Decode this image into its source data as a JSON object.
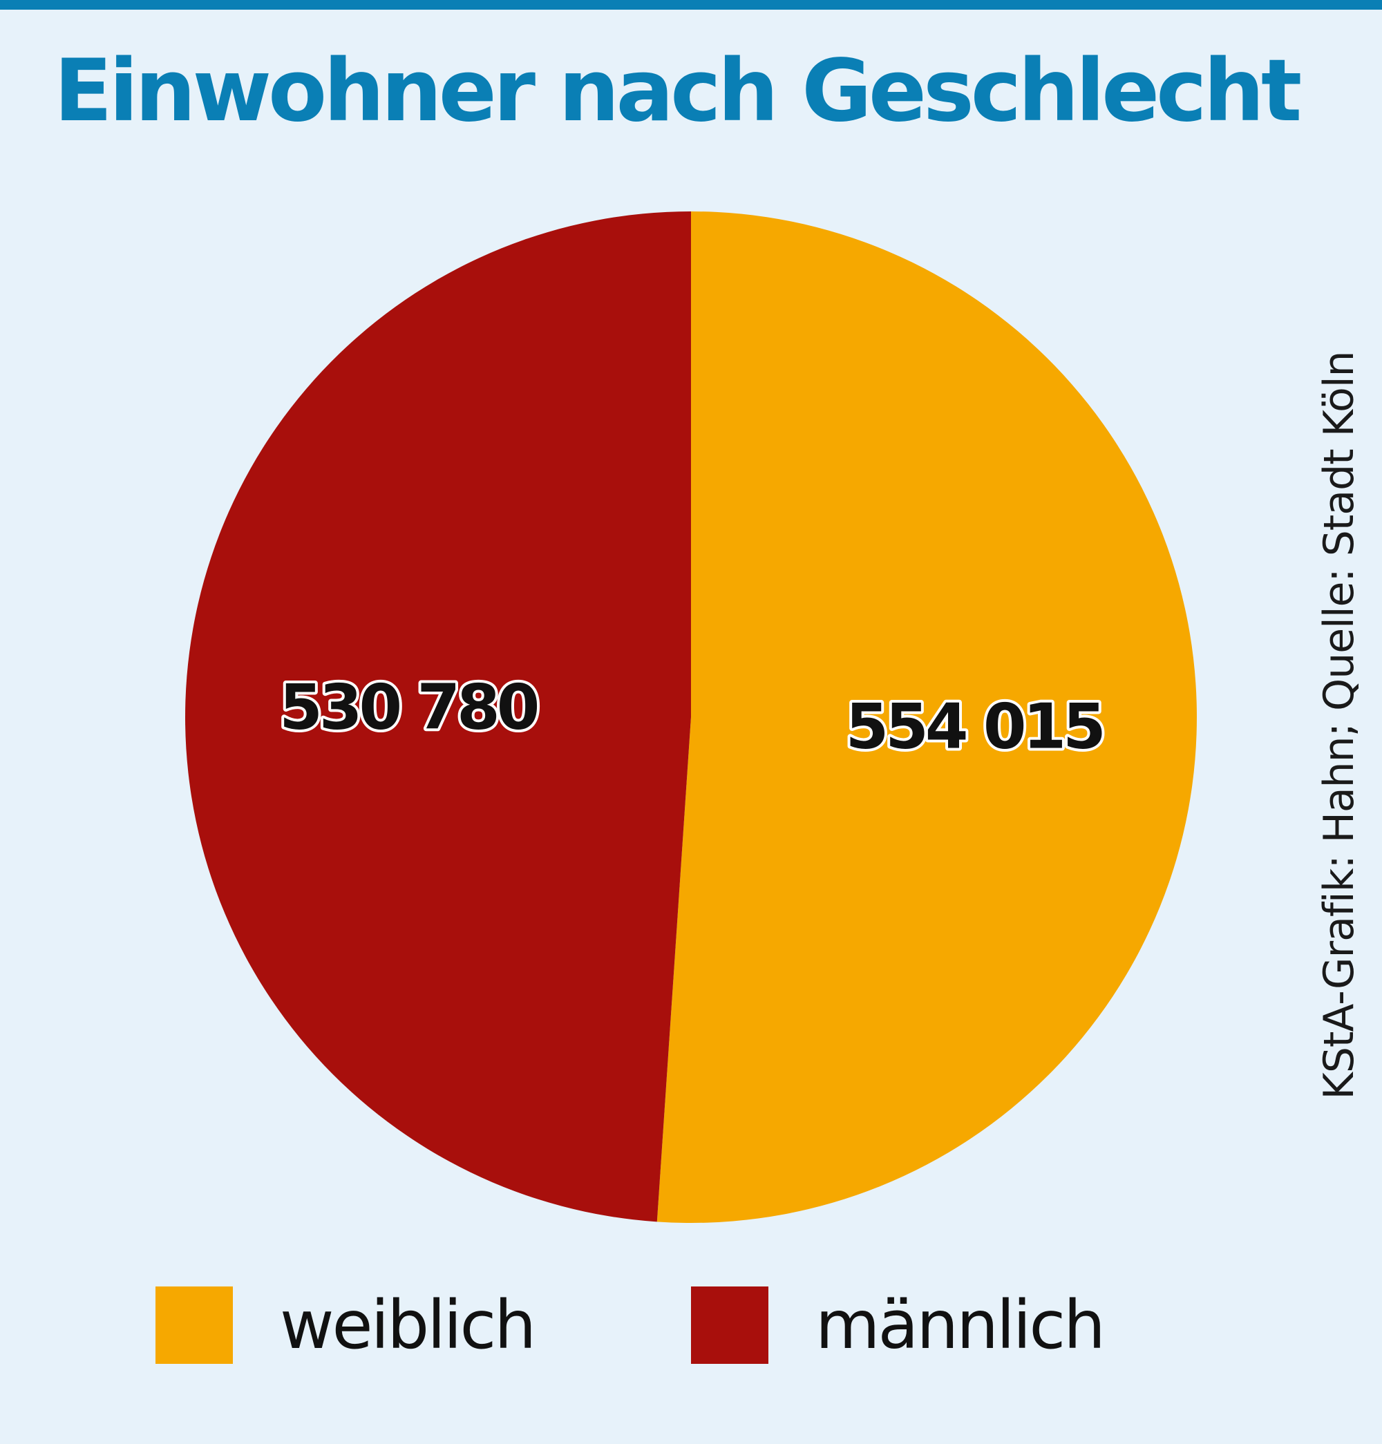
{
  "chart_data": {
    "type": "pie",
    "title": "Einwohner nach Geschlecht",
    "slices": [
      {
        "label": "weiblich",
        "value": 554015,
        "value_label": "554 015",
        "color": "#f6a800"
      },
      {
        "label": "männlich",
        "value": 530780,
        "value_label": "530 780",
        "color": "#a80f0c"
      }
    ],
    "start_angle": "12 o'clock",
    "direction": "clockwise",
    "legend": "bottom"
  },
  "credit": "KStA-Grafik: Hahn; Quelle: Stadt Köln",
  "colors": {
    "background": "#e7f2fa",
    "accent": "#0a7fb5"
  }
}
